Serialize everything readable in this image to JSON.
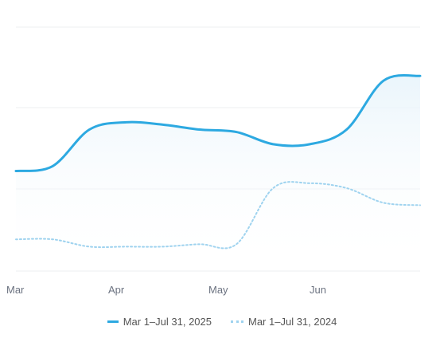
{
  "chart_data": {
    "type": "line",
    "title": "",
    "xlabel": "",
    "ylabel": "",
    "x_ticks": [
      "Mar",
      "Apr",
      "May",
      "Jun"
    ],
    "grid": true,
    "legend_position": "bottom",
    "series": [
      {
        "name": "Mar 1–Jul 31, 2025",
        "style": "solid",
        "color": "#2da9e1",
        "values": [
          0.59,
          0.57,
          0.42,
          0.39,
          0.4,
          0.42,
          0.43,
          0.48,
          0.48,
          0.42,
          0.22,
          0.2
        ]
      },
      {
        "name": "Mar 1–Jul 31, 2024",
        "style": "dotted",
        "color": "#9fd3ef",
        "values": [
          0.87,
          0.87,
          0.9,
          0.9,
          0.9,
          0.89,
          0.89,
          0.66,
          0.64,
          0.66,
          0.72,
          0.73
        ]
      }
    ]
  }
}
